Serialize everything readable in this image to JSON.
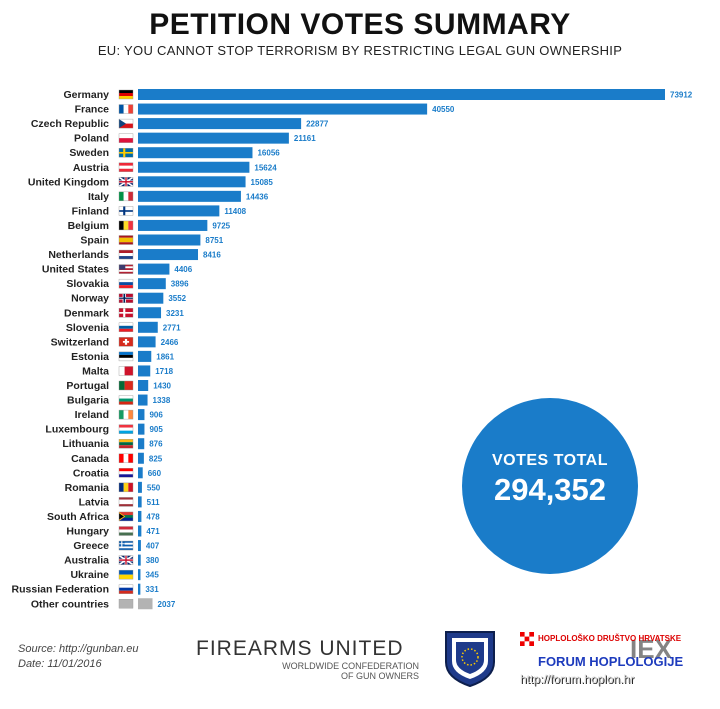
{
  "header": {
    "title": "PETITION VOTES SUMMARY",
    "subtitle": "EU: YOU CANNOT STOP TERRORISM BY RESTRICTING LEGAL GUN OWNERSHIP"
  },
  "colors": {
    "bar": "#1a7cc9",
    "other_bar": "#b3b3b3"
  },
  "chart_data": {
    "type": "bar",
    "orientation": "horizontal",
    "categories": [
      "Germany",
      "France",
      "Czech Republic",
      "Poland",
      "Sweden",
      "Austria",
      "United Kingdom",
      "Italy",
      "Finland",
      "Belgium",
      "Spain",
      "Netherlands",
      "United States",
      "Slovakia",
      "Norway",
      "Denmark",
      "Slovenia",
      "Switzerland",
      "Estonia",
      "Malta",
      "Portugal",
      "Bulgaria",
      "Ireland",
      "Luxembourg",
      "Lithuania",
      "Canada",
      "Croatia",
      "Romania",
      "Latvia",
      "South Africa",
      "Hungary",
      "Greece",
      "Australia",
      "Ukraine",
      "Russian Federation",
      "Other countries"
    ],
    "values": [
      73912,
      40550,
      22877,
      21161,
      16056,
      15624,
      15085,
      14436,
      11408,
      9725,
      8751,
      8416,
      4406,
      3896,
      3552,
      3231,
      2771,
      2466,
      1861,
      1718,
      1430,
      1338,
      906,
      905,
      876,
      825,
      660,
      550,
      511,
      478,
      471,
      407,
      380,
      345,
      331,
      2037
    ],
    "xlim": [
      0,
      73912
    ]
  },
  "flags": [
    {
      "type": "h",
      "c": [
        "#000000",
        "#dd0000",
        "#ffce00"
      ]
    },
    {
      "type": "v",
      "c": [
        "#0055a4",
        "#ffffff",
        "#ef4135"
      ]
    },
    {
      "type": "h",
      "c": [
        "#ffffff",
        "#d7141a"
      ],
      "tri": "#11457e"
    },
    {
      "type": "h",
      "c": [
        "#ffffff",
        "#dc143c"
      ]
    },
    {
      "type": "cross",
      "c": [
        "#006aa7",
        "#fecc00"
      ]
    },
    {
      "type": "h",
      "c": [
        "#ed2939",
        "#ffffff",
        "#ed2939"
      ]
    },
    {
      "type": "uk",
      "c": [
        "#012169",
        "#ffffff",
        "#c8102e"
      ]
    },
    {
      "type": "v",
      "c": [
        "#009246",
        "#ffffff",
        "#ce2b37"
      ]
    },
    {
      "type": "cross",
      "c": [
        "#ffffff",
        "#003580"
      ]
    },
    {
      "type": "v",
      "c": [
        "#000000",
        "#fdda24",
        "#ef3340"
      ]
    },
    {
      "type": "h3",
      "c": [
        "#aa151b",
        "#f1bf00",
        "#aa151b"
      ]
    },
    {
      "type": "h",
      "c": [
        "#ae1c28",
        "#ffffff",
        "#21468b"
      ]
    },
    {
      "type": "us",
      "c": [
        "#b22234",
        "#ffffff",
        "#3c3b6e"
      ]
    },
    {
      "type": "h",
      "c": [
        "#ffffff",
        "#0b4ea2",
        "#ee1c25"
      ]
    },
    {
      "type": "cross2",
      "c": [
        "#ba0c2f",
        "#ffffff",
        "#00205b"
      ]
    },
    {
      "type": "cross",
      "c": [
        "#c8102e",
        "#ffffff"
      ]
    },
    {
      "type": "h",
      "c": [
        "#ffffff",
        "#005da4",
        "#ed1c24"
      ]
    },
    {
      "type": "swiss",
      "c": [
        "#d52b1e",
        "#ffffff"
      ]
    },
    {
      "type": "h",
      "c": [
        "#0072ce",
        "#000000",
        "#ffffff"
      ]
    },
    {
      "type": "v2",
      "c": [
        "#ffffff",
        "#cf142b"
      ]
    },
    {
      "type": "v2",
      "c": [
        "#046a38",
        "#da291c"
      ]
    },
    {
      "type": "h",
      "c": [
        "#ffffff",
        "#00966e",
        "#d62612"
      ]
    },
    {
      "type": "v",
      "c": [
        "#169b62",
        "#ffffff",
        "#ff883e"
      ]
    },
    {
      "type": "h",
      "c": [
        "#ef3340",
        "#ffffff",
        "#00a3e0"
      ]
    },
    {
      "type": "h",
      "c": [
        "#fdb913",
        "#006a44",
        "#c1272d"
      ]
    },
    {
      "type": "v",
      "c": [
        "#ff0000",
        "#ffffff",
        "#ff0000"
      ]
    },
    {
      "type": "h",
      "c": [
        "#ff0000",
        "#ffffff",
        "#171796"
      ]
    },
    {
      "type": "v",
      "c": [
        "#002b7f",
        "#fcd116",
        "#ce1126"
      ]
    },
    {
      "type": "h3",
      "c": [
        "#9e3039",
        "#ffffff",
        "#9e3039"
      ]
    },
    {
      "type": "za",
      "c": [
        "#007a4d",
        "#ffb612",
        "#de3831",
        "#002395"
      ]
    },
    {
      "type": "h",
      "c": [
        "#ce2939",
        "#ffffff",
        "#477050"
      ]
    },
    {
      "type": "stripes",
      "c": [
        "#0d5eaf",
        "#ffffff"
      ]
    },
    {
      "type": "uk",
      "c": [
        "#012169",
        "#ffffff",
        "#c8102e"
      ]
    },
    {
      "type": "h",
      "c": [
        "#0057b7",
        "#ffd700"
      ]
    },
    {
      "type": "h",
      "c": [
        "#ffffff",
        "#0039a6",
        "#d52b1e"
      ]
    },
    {
      "type": "h",
      "c": [
        "#b3b3b3"
      ]
    }
  ],
  "total": {
    "label": "VOTES TOTAL",
    "value": "294,352"
  },
  "footer": {
    "source": "Source: http://gunban.eu",
    "date": "Date: 11/01/2016",
    "org_name": "FIREARMS UNITED",
    "org_tag1": "WORLDWIDE CONFEDERATION",
    "org_tag2": "OF GUN OWNERS",
    "forum_line1": "HOPLOLOŠKO DRUŠTVO HRVATSKE",
    "forum_line2": "FORUM HOPLOLOGIJE",
    "forum_line3": "http://forum.hoplon.hr",
    "watermark": "IEX"
  }
}
